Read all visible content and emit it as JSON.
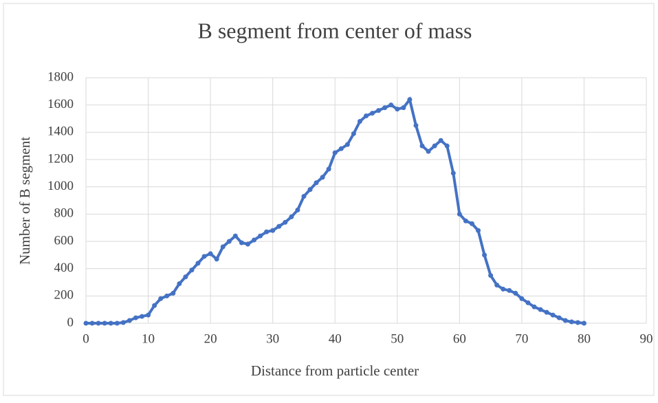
{
  "chart_data": {
    "type": "line",
    "title": "B segment from center of mass",
    "xlabel": "Distance from particle center",
    "ylabel": "Number of B segment",
    "x": [
      0,
      1,
      2,
      3,
      4,
      5,
      6,
      7,
      8,
      9,
      10,
      11,
      12,
      13,
      14,
      15,
      16,
      17,
      18,
      19,
      20,
      21,
      22,
      23,
      24,
      25,
      26,
      27,
      28,
      29,
      30,
      31,
      32,
      33,
      34,
      35,
      36,
      37,
      38,
      39,
      40,
      41,
      42,
      43,
      44,
      45,
      46,
      47,
      48,
      49,
      50,
      51,
      52,
      53,
      54,
      55,
      56,
      57,
      58,
      59,
      60,
      61,
      62,
      63,
      64,
      65,
      66,
      67,
      68,
      69,
      70,
      71,
      72,
      73,
      74,
      75,
      76,
      77,
      78,
      79,
      80
    ],
    "series": [
      {
        "name": "B segment",
        "color": "#4472c4",
        "values": [
          0,
          0,
          0,
          0,
          0,
          0,
          5,
          20,
          40,
          50,
          60,
          130,
          180,
          200,
          220,
          290,
          340,
          390,
          440,
          490,
          510,
          470,
          560,
          600,
          640,
          590,
          580,
          610,
          640,
          670,
          680,
          710,
          740,
          780,
          830,
          930,
          980,
          1030,
          1070,
          1130,
          1250,
          1280,
          1310,
          1390,
          1480,
          1520,
          1540,
          1560,
          1580,
          1600,
          1570,
          1580,
          1640,
          1450,
          1300,
          1260,
          1300,
          1340,
          1300,
          1100,
          800,
          750,
          730,
          680,
          500,
          350,
          280,
          250,
          240,
          220,
          180,
          150,
          120,
          100,
          80,
          60,
          40,
          20,
          10,
          5,
          0
        ]
      }
    ],
    "xlim": [
      0,
      90
    ],
    "xticks": [
      0,
      10,
      20,
      30,
      40,
      50,
      60,
      70,
      80,
      90
    ],
    "ylim": [
      0,
      1800
    ],
    "yticks": [
      0,
      200,
      400,
      600,
      800,
      1000,
      1200,
      1400,
      1600,
      1800
    ],
    "grid": true
  }
}
